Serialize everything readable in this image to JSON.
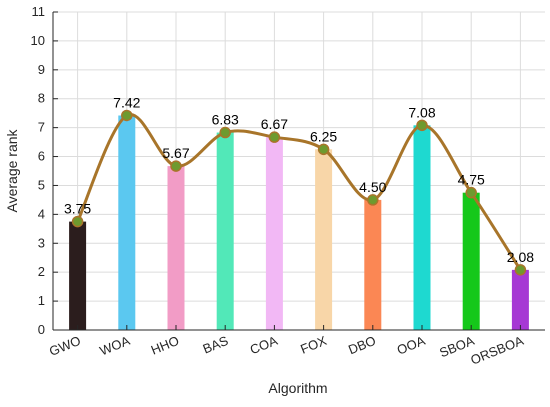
{
  "chart_data": {
    "type": "bar",
    "title": "",
    "xlabel": "Algorithm",
    "ylabel": "Average rank",
    "ylim": [
      0,
      11
    ],
    "yticks": [
      0,
      1,
      2,
      3,
      4,
      5,
      6,
      7,
      8,
      9,
      10,
      11
    ],
    "grid": true,
    "categories": [
      "GWO",
      "WOA",
      "HHO",
      "BAS",
      "COA",
      "FOX",
      "DBO",
      "OOA",
      "SBOA",
      "ORSBOA"
    ],
    "values": [
      3.75,
      7.42,
      5.67,
      6.83,
      6.67,
      6.25,
      4.5,
      7.08,
      4.75,
      2.08
    ],
    "value_labels": [
      "3.75",
      "7.42",
      "5.67",
      "6.83",
      "6.67",
      "6.25",
      "4.50",
      "7.08",
      "4.75",
      "2.08"
    ],
    "bar_colors": [
      "#2b1d1d",
      "#5bc8f0",
      "#f29cc6",
      "#52e8b8",
      "#f2b8f5",
      "#f8d6a8",
      "#fb8754",
      "#1ed9d0",
      "#15c81a",
      "#a638d4"
    ],
    "overlay": {
      "type": "smooth-line",
      "line_color": "#a8752a",
      "marker_color": "#6e9a2e"
    },
    "legend": "none"
  }
}
